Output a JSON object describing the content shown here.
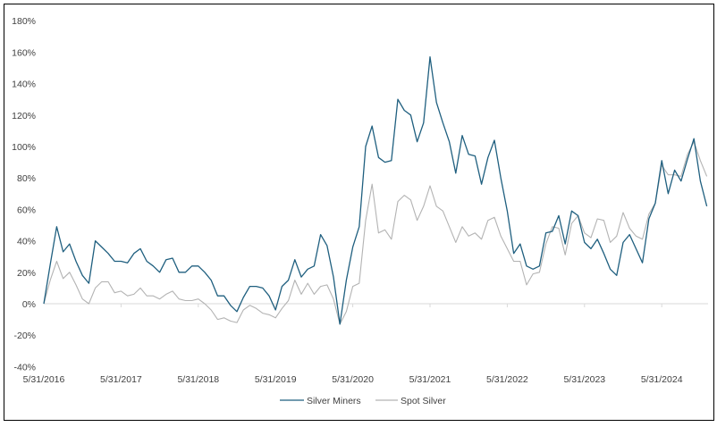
{
  "chart_data": {
    "type": "line",
    "title": "",
    "xlabel": "",
    "ylabel": "",
    "ylim": [
      -40,
      180
    ],
    "y_ticks": [
      "180%",
      "160%",
      "140%",
      "120%",
      "100%",
      "80%",
      "60%",
      "40%",
      "20%",
      "0%",
      "-20%",
      "-40%"
    ],
    "y_tick_values": [
      180,
      160,
      140,
      120,
      100,
      80,
      60,
      40,
      20,
      0,
      -20,
      -40
    ],
    "x_ticks": [
      "5/31/2016",
      "5/31/2017",
      "5/31/2018",
      "5/31/2019",
      "5/31/2020",
      "5/31/2021",
      "5/31/2022",
      "5/31/2023",
      "5/31/2024"
    ],
    "x_start": "5/31/2016",
    "x_frequency": "monthly",
    "grid": false,
    "legend_position": "bottom",
    "series": [
      {
        "name": "Silver Miners",
        "color": "#1f5f7f",
        "values": [
          0,
          25,
          49,
          33,
          38,
          27,
          18,
          13,
          40,
          36,
          32,
          27,
          27,
          26,
          32,
          35,
          27,
          24,
          20,
          28,
          29,
          20,
          20,
          24,
          24,
          20,
          15,
          5,
          5,
          -1,
          -5,
          4,
          11,
          11,
          10,
          5,
          -4,
          11,
          15,
          28,
          17,
          22,
          24,
          44,
          37,
          17,
          -13,
          15,
          36,
          49,
          100,
          113,
          93,
          90,
          91,
          130,
          123,
          120,
          103,
          115,
          157,
          128,
          115,
          103,
          83,
          107,
          95,
          94,
          76,
          93,
          104,
          80,
          59,
          32,
          38,
          24,
          22,
          24,
          45,
          46,
          56,
          38,
          59,
          56,
          39,
          35,
          41,
          32,
          22,
          18,
          39,
          44,
          35,
          26,
          54,
          64,
          91,
          70,
          85,
          78,
          92,
          105,
          78,
          62
        ]
      },
      {
        "name": "Spot Silver",
        "color": "#b3b3b3",
        "values": [
          0,
          15,
          27,
          16,
          20,
          12,
          3,
          0,
          10,
          14,
          14,
          7,
          8,
          5,
          6,
          10,
          5,
          5,
          3,
          6,
          8,
          3,
          2,
          2,
          3,
          0,
          -4,
          -10,
          -9,
          -11,
          -12,
          -4,
          -1,
          -3,
          -6,
          -7,
          -9,
          -3,
          2,
          15,
          6,
          13,
          6,
          11,
          12,
          3,
          -13,
          -5,
          11,
          13,
          53,
          76,
          45,
          47,
          41,
          65,
          69,
          66,
          53,
          62,
          75,
          62,
          59,
          49,
          39,
          49,
          43,
          45,
          41,
          53,
          55,
          43,
          35,
          27,
          27,
          12,
          19,
          20,
          38,
          49,
          48,
          31,
          51,
          56,
          45,
          42,
          54,
          53,
          39,
          43,
          58,
          48,
          43,
          41,
          57,
          64,
          88,
          82,
          82,
          81,
          95,
          103,
          91,
          81
        ]
      }
    ]
  },
  "legend": {
    "items": [
      {
        "label": "Silver Miners",
        "color": "#1f5f7f"
      },
      {
        "label": "Spot Silver",
        "color": "#b3b3b3"
      }
    ]
  }
}
